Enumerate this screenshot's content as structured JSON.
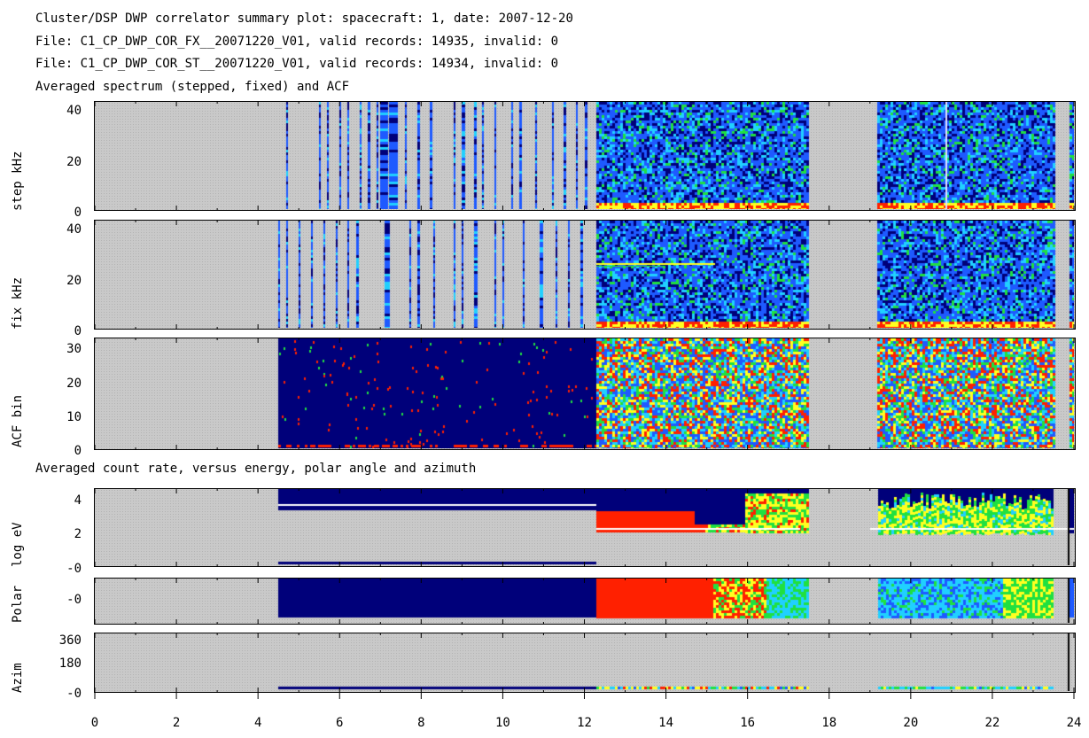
{
  "header": {
    "line1": "Cluster/DSP DWP correlator summary plot: spacecraft: 1, date: 2007-12-20",
    "line2": "File: C1_CP_DWP_COR_FX__20071220_V01, valid records: 14935, invalid: 0",
    "line3": "File: C1_CP_DWP_COR_ST__20071220_V01, valid records: 14934, invalid: 0",
    "line4": "Averaged spectrum (stepped, fixed) and ACF",
    "section2": "Averaged count rate, versus energy, polar angle and azimuth"
  },
  "chart_data": [
    {
      "type": "heatmap",
      "ylabel": "step kHz",
      "yticks": [
        "40",
        "20",
        "0"
      ],
      "ylim": [
        0,
        42
      ],
      "xlim": [
        0,
        24
      ],
      "data_spans": [
        [
          4.7,
          12.3,
          "sparse"
        ],
        [
          12.3,
          17.5,
          "dense"
        ],
        [
          19.2,
          23.5,
          "dense"
        ],
        [
          23.9,
          24,
          "dense"
        ]
      ]
    },
    {
      "type": "heatmap",
      "ylabel": "fix kHz",
      "yticks": [
        "40",
        "20",
        "0"
      ],
      "ylim": [
        0,
        42
      ],
      "xlim": [
        0,
        24
      ],
      "data_spans": [
        [
          4.5,
          12.0,
          "sparse"
        ],
        [
          12.3,
          17.5,
          "dense"
        ],
        [
          19.2,
          23.5,
          "dense"
        ],
        [
          23.9,
          24,
          "dense"
        ]
      ]
    },
    {
      "type": "heatmap",
      "ylabel": "ACF bin",
      "yticks": [
        "30",
        "20",
        "10",
        "0"
      ],
      "ylim": [
        0,
        32
      ],
      "xlim": [
        0,
        24
      ],
      "data_spans": [
        [
          4.5,
          12.3,
          "acf-low"
        ],
        [
          12.3,
          17.5,
          "acf-high"
        ],
        [
          19.2,
          23.5,
          "acf-high"
        ],
        [
          23.9,
          24,
          "acf-high"
        ]
      ]
    },
    {
      "type": "heatmap",
      "ylabel": "log eV",
      "yticks": [
        "4",
        "2",
        "-0"
      ],
      "xlim": [
        0,
        24
      ]
    },
    {
      "type": "heatmap",
      "ylabel": "Polar",
      "yticks": [
        "-0"
      ],
      "xlim": [
        0,
        24
      ]
    },
    {
      "type": "heatmap",
      "ylabel": "Azim",
      "yticks": [
        "360",
        "180",
        "-0"
      ],
      "xlim": [
        0,
        24
      ]
    }
  ],
  "xaxis": {
    "ticks": [
      "0",
      "2",
      "4",
      "6",
      "8",
      "10",
      "12",
      "14",
      "16",
      "18",
      "20",
      "22",
      "24"
    ]
  },
  "colors": {
    "no_data": "#c9c9c9",
    "low": "#00007a",
    "mid_blue": "#1e5aff",
    "cyan": "#20d0ff",
    "green": "#20e040",
    "yellow": "#ffff20",
    "red": "#ff2000"
  }
}
